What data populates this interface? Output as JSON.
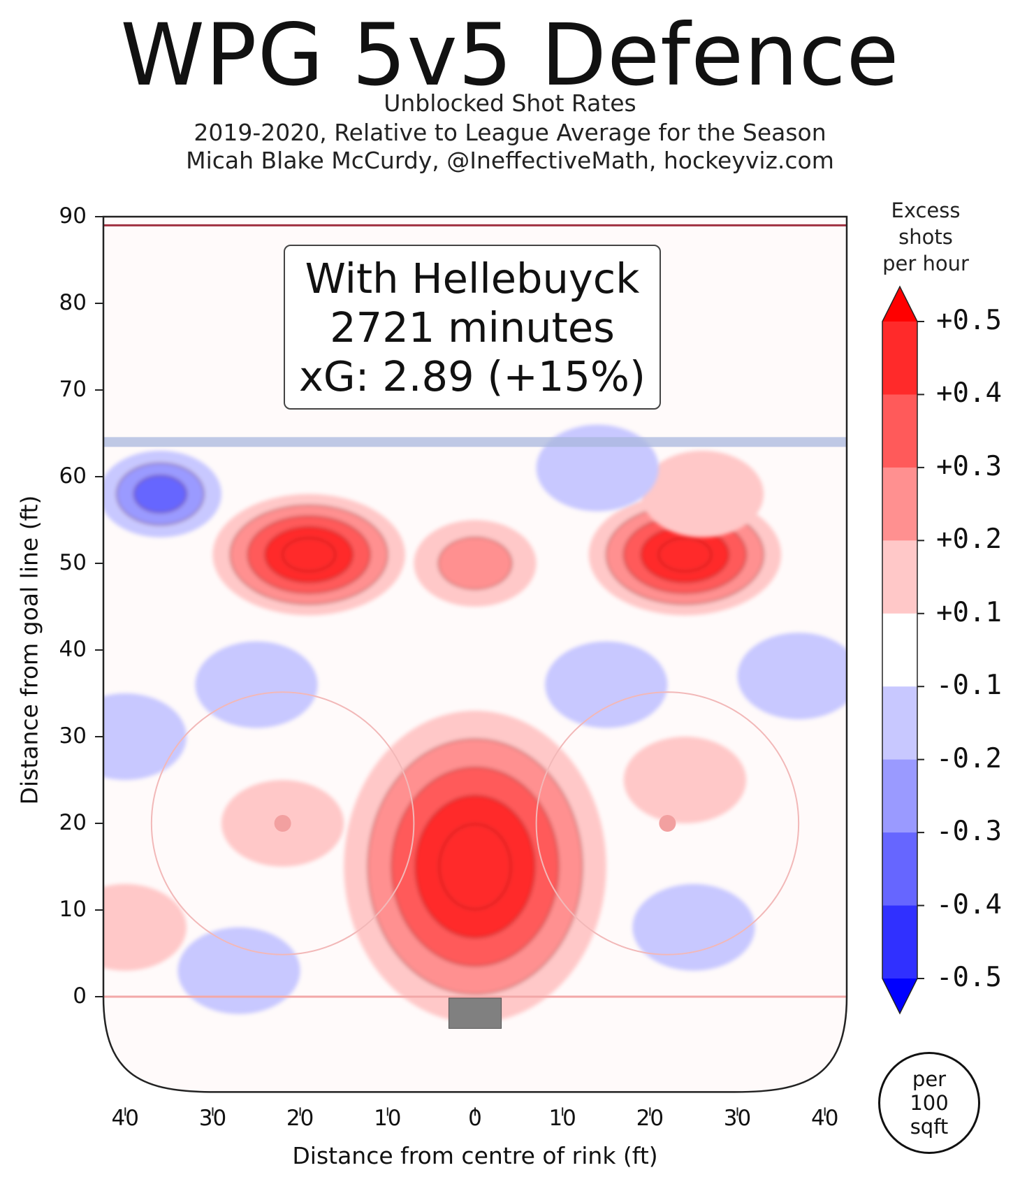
{
  "title": "WPG 5v5 Defence",
  "subtitle_lines": [
    "Unblocked Shot Rates",
    "2019-2020, Relative to League Average for the Season",
    "Micah Blake McCurdy, @IneffectiveMath, hockeyviz.com"
  ],
  "info_box": {
    "line1": "With Hellebuyck",
    "line2": "2721 minutes",
    "line3": "xG: 2.89 (+15%)"
  },
  "colorbar": {
    "title_lines": [
      "Excess",
      "shots",
      "per hour"
    ],
    "levels": [
      "+0.5",
      "+0.4",
      "+0.3",
      "+0.2",
      "+0.1",
      "-0.1",
      "-0.2",
      "-0.3",
      "-0.4",
      "-0.5"
    ],
    "band_colors": [
      "#ff0000",
      "#ff2a2a",
      "#ff5a5a",
      "#ff9090",
      "#ffc8c8",
      "#ffffff",
      "#c8c8ff",
      "#9a9aff",
      "#6666ff",
      "#3030ff",
      "#0000ff"
    ],
    "unit_lines": [
      "per",
      "100",
      "sqft"
    ]
  },
  "chart_data": {
    "type": "heatmap",
    "description_of_values": "excess unblocked shots per hour per 100 sqft relative to league average",
    "xlabel": "Distance from centre of rink (ft)",
    "ylabel": "Distance from goal line (ft)",
    "xlim": [
      -42.5,
      42.5
    ],
    "ylim": [
      -11,
      90
    ],
    "x_ticks": [
      "40",
      "30",
      "20",
      "10",
      "0",
      "10",
      "20",
      "30",
      "40"
    ],
    "y_ticks": [
      "0",
      "10",
      "20",
      "30",
      "40",
      "50",
      "60",
      "70",
      "80",
      "90"
    ],
    "blue_line_y": 64,
    "goal_line_y": 0,
    "faceoff_circles": [
      {
        "x": -22,
        "y": 20
      },
      {
        "x": 22,
        "y": 20
      }
    ],
    "hotspots": [
      {
        "x": 0,
        "y": 15,
        "peak": 0.5
      },
      {
        "x": -19,
        "y": 51,
        "peak": 0.45
      },
      {
        "x": 24,
        "y": 51,
        "peak": 0.5
      },
      {
        "x": 0,
        "y": 50,
        "peak": 0.2
      },
      {
        "x": -22,
        "y": 20,
        "peak": 0.15
      },
      {
        "x": 24,
        "y": 25,
        "peak": 0.15
      },
      {
        "x": -40,
        "y": 8,
        "peak": 0.15
      },
      {
        "x": 26,
        "y": 58,
        "peak": 0.15
      }
    ],
    "coldspots": [
      {
        "x": -36,
        "y": 58,
        "peak": -0.25
      },
      {
        "x": 37,
        "y": 37,
        "peak": -0.15
      },
      {
        "x": 25,
        "y": 8,
        "peak": -0.15
      },
      {
        "x": -25,
        "y": 36,
        "peak": -0.15
      },
      {
        "x": 15,
        "y": 36,
        "peak": -0.15
      },
      {
        "x": -40,
        "y": 30,
        "peak": -0.15
      },
      {
        "x": -27,
        "y": 3,
        "peak": -0.15
      },
      {
        "x": 14,
        "y": 61,
        "peak": -0.15
      }
    ]
  }
}
